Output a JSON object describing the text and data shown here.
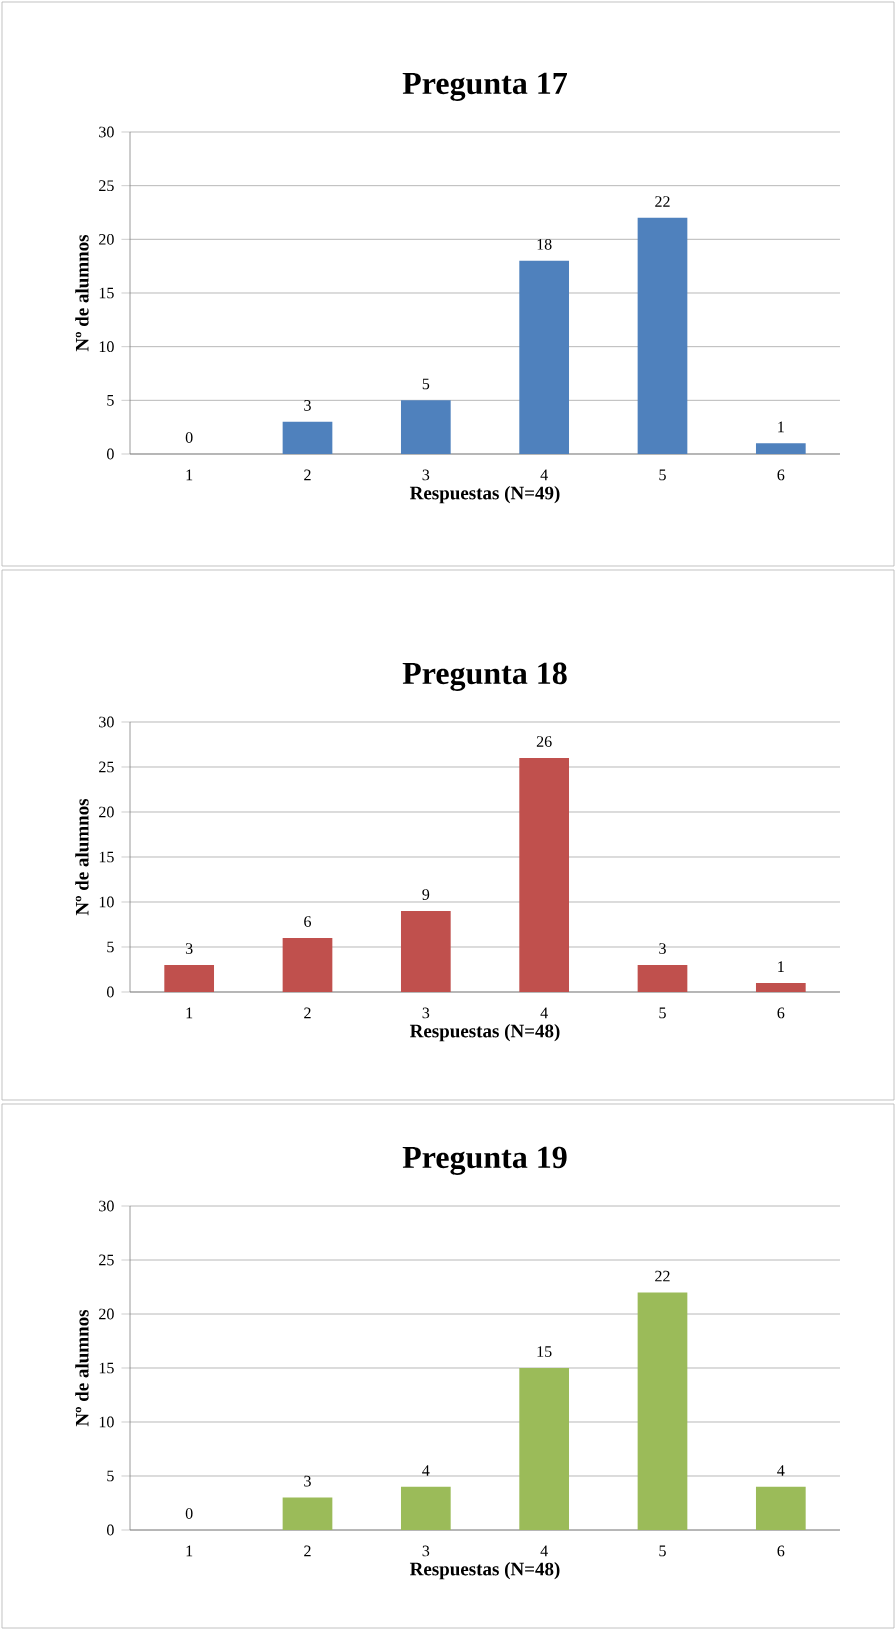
{
  "chart_data": [
    {
      "type": "bar",
      "title": "Pregunta 17",
      "xlabel": "Respuestas (N=49)",
      "ylabel": "Nº de alumnos",
      "categories": [
        "1",
        "2",
        "3",
        "4",
        "5",
        "6"
      ],
      "values": [
        0,
        3,
        5,
        18,
        22,
        1
      ],
      "color": "#4f81bd",
      "ylim": [
        0,
        30
      ],
      "yticks": [
        0,
        5,
        10,
        15,
        20,
        25,
        30
      ],
      "grid": "y",
      "data_labels": true
    },
    {
      "type": "bar",
      "title": "Pregunta 18",
      "xlabel": "Respuestas (N=48)",
      "ylabel": "Nº de alumnos",
      "categories": [
        "1",
        "2",
        "3",
        "4",
        "5",
        "6"
      ],
      "values": [
        3,
        6,
        9,
        26,
        3,
        1
      ],
      "color": "#c0504d",
      "ylim": [
        0,
        30
      ],
      "yticks": [
        0,
        5,
        10,
        15,
        20,
        25,
        30
      ],
      "grid": "y",
      "data_labels": true
    },
    {
      "type": "bar",
      "title": "Pregunta 19",
      "xlabel": "Respuestas (N=48)",
      "ylabel": "Nº de alumnos",
      "categories": [
        "1",
        "2",
        "3",
        "4",
        "5",
        "6"
      ],
      "values": [
        0,
        3,
        4,
        15,
        22,
        4
      ],
      "color": "#9bbb59",
      "ylim": [
        0,
        30
      ],
      "yticks": [
        0,
        5,
        10,
        15,
        20,
        25,
        30
      ],
      "grid": "y",
      "data_labels": true
    }
  ]
}
